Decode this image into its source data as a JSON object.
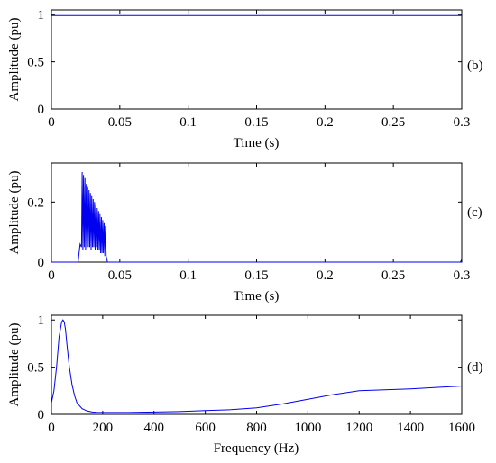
{
  "chart_data": [
    {
      "type": "line",
      "panel_label": "(b)",
      "xlabel": "Time (s)",
      "ylabel": "Amplitude (pu)",
      "xlim": [
        0,
        0.3
      ],
      "ylim": [
        0,
        1.05
      ],
      "xticks": [
        0,
        0.05,
        0.1,
        0.15,
        0.2,
        0.25,
        0.3
      ],
      "xtick_labels": [
        "0",
        "0.05",
        "0.1",
        "0.15",
        "0.2",
        "0.25",
        "0.3"
      ],
      "yticks": [
        0,
        0.5,
        1
      ],
      "ytick_labels": [
        "0",
        "0.5",
        "1"
      ],
      "series": [
        {
          "color": "#0000ee",
          "x": [
            0,
            0.3
          ],
          "y": [
            0.99,
            0.99
          ]
        }
      ]
    },
    {
      "type": "line",
      "panel_label": "(c)",
      "xlabel": "Time (s)",
      "ylabel": "Amplitude (pu)",
      "xlim": [
        0,
        0.3
      ],
      "ylim": [
        0,
        0.33
      ],
      "xticks": [
        0,
        0.05,
        0.1,
        0.15,
        0.2,
        0.25,
        0.3
      ],
      "xtick_labels": [
        "0",
        "0.05",
        "0.1",
        "0.15",
        "0.2",
        "0.25",
        "0.3"
      ],
      "yticks": [
        0,
        0.2
      ],
      "ytick_labels": [
        "0",
        "0.2"
      ],
      "series": [
        {
          "color": "#0000ee",
          "x": [
            0,
            0.0195,
            0.02,
            0.021,
            0.022,
            0.0225,
            0.023,
            0.0235,
            0.024,
            0.0245,
            0.025,
            0.0255,
            0.026,
            0.0265,
            0.027,
            0.0275,
            0.028,
            0.0285,
            0.029,
            0.0295,
            0.03,
            0.0305,
            0.031,
            0.0315,
            0.032,
            0.0325,
            0.033,
            0.0335,
            0.034,
            0.0345,
            0.035,
            0.0355,
            0.036,
            0.0365,
            0.037,
            0.0375,
            0.038,
            0.0385,
            0.039,
            0.0395,
            0.04,
            0.041,
            0.299,
            0.3
          ],
          "y": [
            0,
            0,
            0.02,
            0.06,
            0.05,
            0.3,
            0.04,
            0.29,
            0.05,
            0.28,
            0.04,
            0.26,
            0.05,
            0.25,
            0.05,
            0.24,
            0.05,
            0.23,
            0.04,
            0.22,
            0.05,
            0.21,
            0.05,
            0.2,
            0.04,
            0.19,
            0.05,
            0.18,
            0.04,
            0.17,
            0.04,
            0.16,
            0.03,
            0.15,
            0.03,
            0.14,
            0.03,
            0.13,
            0.02,
            0.12,
            0.02,
            0,
            0,
            0.01
          ]
        }
      ]
    },
    {
      "type": "line",
      "panel_label": "(d)",
      "xlabel": "Frequency (Hz)",
      "ylabel": "Amplitude (pu)",
      "xlim": [
        0,
        1600
      ],
      "ylim": [
        0,
        1.05
      ],
      "xticks": [
        0,
        200,
        400,
        600,
        800,
        1000,
        1200,
        1400,
        1600
      ],
      "xtick_labels": [
        "0",
        "200",
        "400",
        "600",
        "800",
        "1000",
        "1200",
        "1400",
        "1600"
      ],
      "yticks": [
        0,
        0.5,
        1
      ],
      "ytick_labels": [
        "0",
        "0.5",
        "1"
      ],
      "series": [
        {
          "color": "#0000ee",
          "x": [
            0,
            10,
            20,
            30,
            40,
            45,
            50,
            55,
            60,
            70,
            80,
            90,
            100,
            120,
            140,
            160,
            180,
            200,
            300,
            400,
            500,
            600,
            700,
            800,
            900,
            1000,
            1100,
            1200,
            1300,
            1400,
            1500,
            1600
          ],
          "y": [
            0.12,
            0.25,
            0.5,
            0.82,
            0.98,
            1.0,
            0.98,
            0.9,
            0.75,
            0.5,
            0.32,
            0.2,
            0.12,
            0.06,
            0.035,
            0.025,
            0.02,
            0.02,
            0.02,
            0.025,
            0.03,
            0.04,
            0.05,
            0.07,
            0.11,
            0.16,
            0.21,
            0.25,
            0.26,
            0.27,
            0.285,
            0.3
          ]
        }
      ]
    }
  ]
}
